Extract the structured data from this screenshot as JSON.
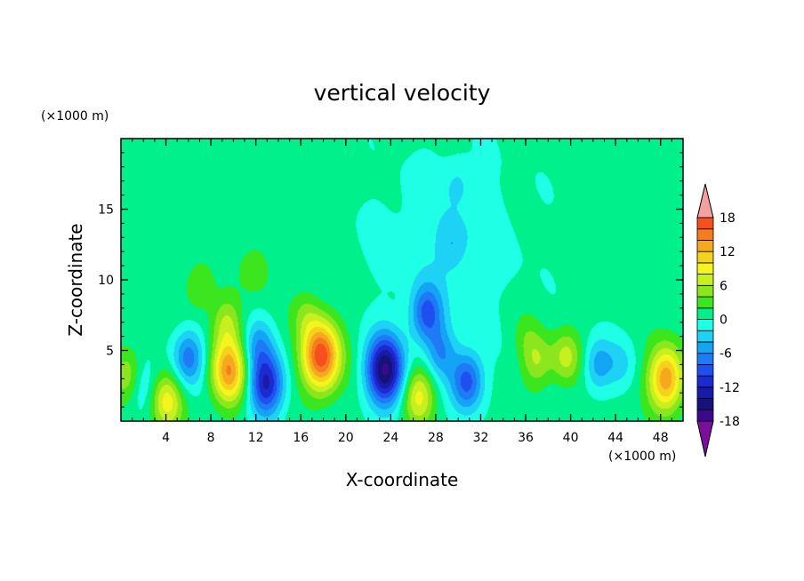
{
  "chart_data": {
    "type": "heatmap",
    "title": "vertical velocity",
    "xlabel": "X-coordinate",
    "ylabel": "Z-coordinate",
    "x_unit_label": "(×1000 m)",
    "y_unit_label": "(×1000 m)",
    "xlim": [
      0,
      50
    ],
    "ylim": [
      0,
      20
    ],
    "x_ticks": [
      4,
      8,
      12,
      16,
      20,
      24,
      28,
      32,
      36,
      40,
      44,
      48
    ],
    "y_ticks": [
      5,
      10,
      15
    ],
    "colorbar": {
      "levels": [
        -20,
        -18,
        -16,
        -14,
        -12,
        -10,
        -8,
        -6,
        -4,
        -2,
        0,
        2,
        4,
        6,
        8,
        10,
        12,
        14,
        16,
        18,
        20
      ],
      "tick_labels": [
        18,
        12,
        6,
        0,
        -6,
        -12,
        -18
      ],
      "colors": [
        "#7a0f9e",
        "#3a0a8a",
        "#15127a",
        "#1a1aa8",
        "#1c2ad0",
        "#1e50f0",
        "#1e7af5",
        "#14a4f5",
        "#1ed2f5",
        "#1effe6",
        "#00f08c",
        "#3ce61e",
        "#8ce61e",
        "#c8f01e",
        "#f5f51e",
        "#f5d21e",
        "#f5aa1e",
        "#f57d1e",
        "#f5501e",
        "#f01e1e",
        "#f5a0a0"
      ],
      "extend": "both"
    },
    "features": [
      {
        "x": 0.9,
        "z": 3.0,
        "w": 7.0
      },
      {
        "x": 1.6,
        "z": 2.6,
        "w": -6.0
      },
      {
        "x": 4.1,
        "z": 1.4,
        "w": 8.0
      },
      {
        "x": 6.0,
        "z": 4.5,
        "w": -8.0
      },
      {
        "x": 7.0,
        "z": 9.5,
        "w": 3.5
      },
      {
        "x": 9.6,
        "z": 3.5,
        "w": 13.0
      },
      {
        "x": 9.4,
        "z": 7.0,
        "w": 5.0
      },
      {
        "x": 12.9,
        "z": 2.6,
        "w": -13.0
      },
      {
        "x": 12.2,
        "z": 5.5,
        "w": -5.0
      },
      {
        "x": 16.5,
        "z": 7.5,
        "w": 3.0
      },
      {
        "x": 17.8,
        "z": 4.6,
        "w": 17.0
      },
      {
        "x": 23.5,
        "z": 3.6,
        "w": -17.0
      },
      {
        "x": 26.5,
        "z": 1.8,
        "w": 8.0
      },
      {
        "x": 27.2,
        "z": 7.6,
        "w": -9.0
      },
      {
        "x": 28.5,
        "z": 4.8,
        "w": -6.0
      },
      {
        "x": 30.8,
        "z": 2.8,
        "w": -10.0
      },
      {
        "x": 29.5,
        "z": 12.5,
        "w": -3.0
      },
      {
        "x": 36.0,
        "z": 6.0,
        "w": 2.0
      },
      {
        "x": 37.0,
        "z": 4.3,
        "w": 5.0
      },
      {
        "x": 39.6,
        "z": 4.5,
        "w": 6.0
      },
      {
        "x": 42.5,
        "z": 4.0,
        "w": -6.0
      },
      {
        "x": 44.5,
        "z": 4.0,
        "w": -3.0
      },
      {
        "x": 48.5,
        "z": 3.0,
        "w": 13.0
      },
      {
        "x": 12.0,
        "z": 10.8,
        "w": 3.0
      },
      {
        "x": 30.0,
        "z": 17.0,
        "w": -2.0
      }
    ]
  }
}
